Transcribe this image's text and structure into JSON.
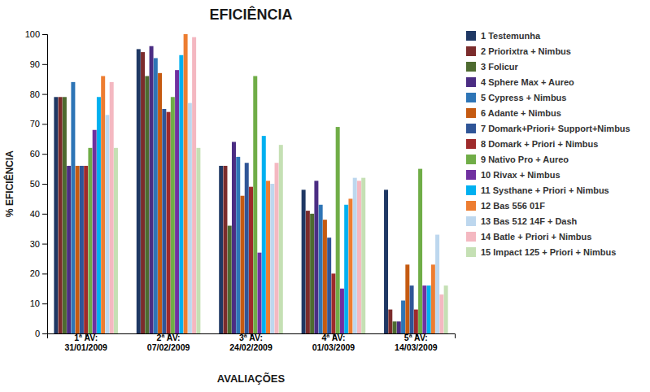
{
  "chart_data": {
    "type": "bar",
    "title": "EFICIÊNCIA",
    "x_label": "AVALIAÇÕES",
    "y_label": "% EFICIÊNCIA",
    "categories": [
      "1ª AV:\n31/01/2009",
      "2ª AV:\n07/02/2009",
      "3ª AV:\n24/02/2009",
      "4ª AV:\n01/03/2009",
      "5ª AV:\n14/03/2009"
    ],
    "series": [
      {
        "name": "1 Testemunha",
        "color": "#1F3864",
        "values": [
          79,
          95,
          56,
          48,
          48
        ]
      },
      {
        "name": "2 Priorixtra + Nimbus",
        "color": "#7B2C2C",
        "values": [
          79,
          94,
          56,
          41,
          8
        ]
      },
      {
        "name": "3 Folicur",
        "color": "#4E6B30",
        "values": [
          79,
          86,
          36,
          40,
          4
        ]
      },
      {
        "name": "4 Sphere Max + Aureo",
        "color": "#4B2D83",
        "values": [
          56,
          96,
          64,
          51,
          4
        ]
      },
      {
        "name": "5 Cypress + Nimbus",
        "color": "#2E75B6",
        "values": [
          84,
          92,
          59,
          43,
          11
        ]
      },
      {
        "name": "6 Adante + Nimbus",
        "color": "#C55A11",
        "values": [
          56,
          87,
          46,
          38,
          23
        ]
      },
      {
        "name": "7 Domark+Priori+ Support+Nimbus",
        "color": "#2F5597",
        "values": [
          56,
          75,
          57,
          32,
          16
        ]
      },
      {
        "name": "8 Domark + Priori + Nimbus",
        "color": "#9E2A2B",
        "values": [
          56,
          74,
          49,
          20,
          8
        ]
      },
      {
        "name": "9 Nativo Pro + Aureo",
        "color": "#70AD47",
        "values": [
          62,
          79,
          86,
          69,
          55
        ]
      },
      {
        "name": "10 Rivax + Nimbus",
        "color": "#7030A0",
        "values": [
          68,
          88,
          27,
          15,
          16
        ]
      },
      {
        "name": "11 Systhane + Priori + Nimbus",
        "color": "#00B0F0",
        "values": [
          79,
          93,
          66,
          43,
          16
        ]
      },
      {
        "name": "12 Bas 556 01F",
        "color": "#ED7D31",
        "values": [
          86,
          100,
          51,
          45,
          23
        ]
      },
      {
        "name": "13 Bas 512 14F + Dash",
        "color": "#BDD7EE",
        "values": [
          73,
          77,
          50,
          52,
          33
        ]
      },
      {
        "name": "14 Batle + Priori + Nimbus",
        "color": "#F4B8C1",
        "values": [
          84,
          99,
          57,
          51,
          13
        ]
      },
      {
        "name": "15 Impact 125 + Priori + Nimbus",
        "color": "#C5E0B4",
        "values": [
          62,
          62,
          63,
          52,
          16
        ]
      }
    ],
    "ylim": [
      0,
      100
    ],
    "yticks": [
      0,
      10,
      20,
      30,
      40,
      50,
      60,
      70,
      80,
      90,
      100
    ],
    "grid": false,
    "legend": "right"
  }
}
